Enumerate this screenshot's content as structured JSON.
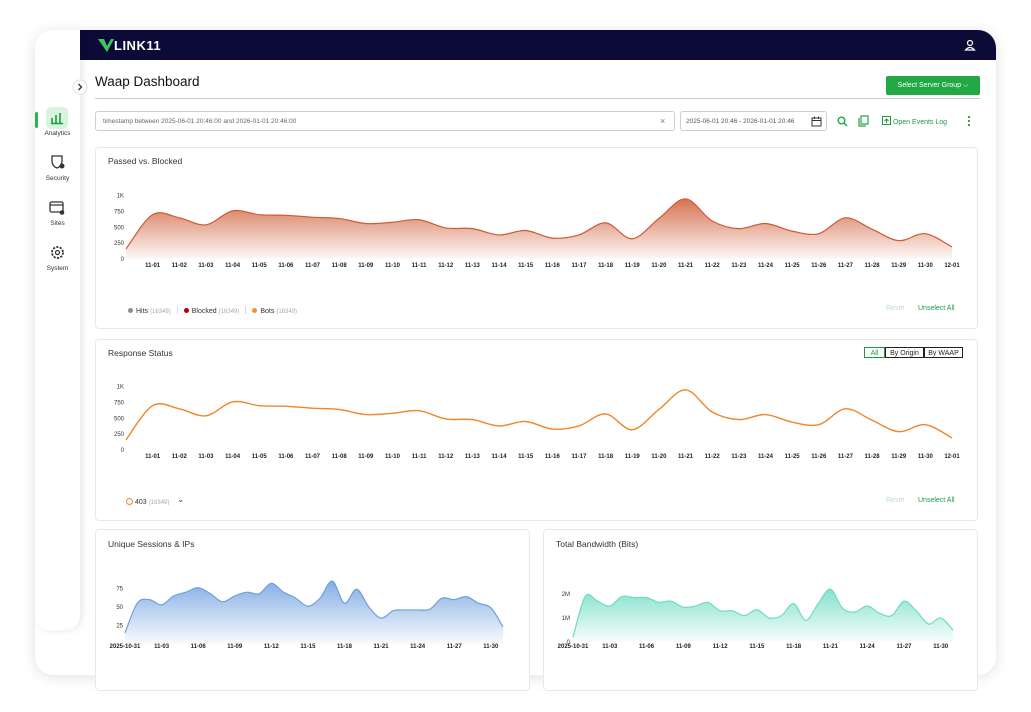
{
  "header": {
    "logo": "LINK11"
  },
  "nav": [
    "Analytics",
    "Security",
    "Sites",
    "System"
  ],
  "page": {
    "title": "Waap Dashboard",
    "server_group_button": "Select Server Group",
    "query": "timestamp between 2025-06-01 20:46:00 and 2026-01-01 20:46:00",
    "date_range": "2025-06-01 20:46 - 2026-01-01 20:46",
    "open_events_log": "Open Events Log"
  },
  "chart_data": [
    {
      "type": "area",
      "title": "Passed vs. Blocked",
      "color": "#cf5a33",
      "categories": [
        null,
        "11-01",
        "11-02",
        "11-03",
        "11-04",
        "11-05",
        "11-06",
        "11-07",
        "11-08",
        "11-09",
        "11-10",
        "11-11",
        "11-12",
        "11-13",
        "11-14",
        "11-15",
        "11-16",
        "11-17",
        "11-18",
        "11-19",
        "11-20",
        "11-21",
        "11-22",
        "11-23",
        "11-24",
        "11-25",
        "11-26",
        "11-27",
        "11-28",
        "11-29",
        "11-30",
        "12-01"
      ],
      "values": [
        160,
        700,
        650,
        540,
        760,
        700,
        690,
        660,
        640,
        560,
        580,
        620,
        490,
        480,
        380,
        450,
        330,
        380,
        570,
        320,
        640,
        950,
        600,
        480,
        560,
        440,
        400,
        650,
        470,
        290,
        400,
        190
      ],
      "ylim": [
        0,
        1200
      ],
      "yticks": [
        0,
        250,
        500,
        750,
        {
          "value": 1000,
          "label": "1K"
        }
      ],
      "legend": [
        {
          "name": "Hits",
          "color": "#8c8c8c",
          "count": {
            "value": 16349,
            "label": "(16349)"
          }
        },
        {
          "name": "Blocked",
          "color": "#b30000",
          "count": {
            "value": 16349,
            "label": "(16349)"
          }
        },
        {
          "name": "Bots",
          "color": "#f0913a",
          "count": {
            "value": 16349,
            "label": "(16349)"
          }
        }
      ],
      "reset": "Reset",
      "unselect_all": "Unselect All"
    },
    {
      "type": "line",
      "title": "Response Status",
      "color": "#f0862a",
      "toggles": [
        "All",
        "By Origin",
        "By WAAP"
      ],
      "categories": [
        null,
        "11-01",
        "11-02",
        "11-03",
        "11-04",
        "11-05",
        "11-06",
        "11-07",
        "11-08",
        "11-09",
        "11-10",
        "11-11",
        "11-12",
        "11-13",
        "11-14",
        "11-15",
        "11-16",
        "11-17",
        "11-18",
        "11-19",
        "11-20",
        "11-21",
        "11-22",
        "11-23",
        "11-24",
        "11-25",
        "11-26",
        "11-27",
        "11-28",
        "11-29",
        "11-30",
        "12-01"
      ],
      "values": [
        160,
        700,
        650,
        540,
        760,
        700,
        690,
        660,
        640,
        560,
        580,
        620,
        490,
        480,
        380,
        450,
        330,
        380,
        570,
        320,
        640,
        950,
        600,
        480,
        560,
        440,
        400,
        650,
        470,
        290,
        400,
        190
      ],
      "ylim": [
        0,
        1200
      ],
      "yticks": [
        0,
        250,
        500,
        750,
        {
          "value": 1000,
          "label": "1K"
        }
      ],
      "legend": [
        {
          "name": "403",
          "color": "#f0862a",
          "count": {
            "value": 16349,
            "label": "(16349)"
          }
        }
      ],
      "reset": "Reset",
      "unselect_all": "Unselect All"
    },
    {
      "type": "area",
      "title": "Unique Sessions & IPs",
      "color": "#6f9fe0",
      "categories": [
        "2025-10-31",
        null,
        null,
        "11-03",
        null,
        null,
        "11-06",
        null,
        null,
        "11-09",
        null,
        null,
        "11-12",
        null,
        null,
        "11-15",
        null,
        null,
        "11-18",
        null,
        null,
        "11-21",
        null,
        null,
        "11-24",
        null,
        null,
        "11-27",
        null,
        null,
        "11-30",
        null
      ],
      "values": [
        15,
        55,
        60,
        53,
        65,
        70,
        76,
        68,
        57,
        65,
        70,
        68,
        82,
        70,
        62,
        51,
        62,
        85,
        55,
        74,
        50,
        35,
        45,
        46,
        46,
        47,
        62,
        60,
        64,
        55,
        49,
        23
      ],
      "ylim": [
        0,
        100
      ],
      "yticks": [
        25,
        50,
        75
      ]
    },
    {
      "type": "area",
      "title": "Total Bandwidth (Bits)",
      "color": "#6fdcc2",
      "categories": [
        "2025-10-31",
        null,
        null,
        "11-03",
        null,
        null,
        "11-06",
        null,
        null,
        "11-09",
        null,
        null,
        "11-12",
        null,
        null,
        "11-15",
        null,
        null,
        "11-18",
        null,
        null,
        "11-21",
        null,
        null,
        "11-24",
        null,
        null,
        "11-27",
        null,
        null,
        "11-30",
        null
      ],
      "values": [
        200000,
        1900000,
        1700000,
        1500000,
        1900000,
        1850000,
        1850000,
        1650000,
        1700000,
        1450000,
        1500000,
        1650000,
        1300000,
        1300000,
        1100000,
        1350000,
        1000000,
        1100000,
        1600000,
        900000,
        1600000,
        2200000,
        1400000,
        1250000,
        1500000,
        1200000,
        1100000,
        1700000,
        1300000,
        750000,
        1000000,
        500000
      ],
      "ylim": [
        0,
        3000000
      ],
      "yticks": [
        0,
        {
          "value": 1000000,
          "label": "1M"
        },
        {
          "value": 2000000,
          "label": "2M"
        }
      ]
    }
  ]
}
